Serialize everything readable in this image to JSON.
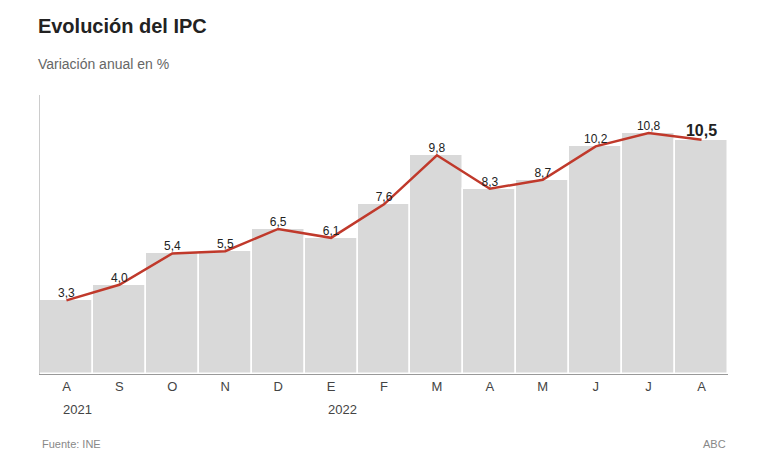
{
  "chart_data": {
    "type": "bar",
    "title": "Evolución del IPC",
    "subtitle": "Variación anual en %",
    "categories": [
      "A",
      "S",
      "O",
      "N",
      "D",
      "E",
      "F",
      "M",
      "A",
      "M",
      "J",
      "J",
      "A"
    ],
    "series": [
      {
        "type": "bar",
        "color": "#d9d9d9",
        "values": [
          3.3,
          4.0,
          5.4,
          5.5,
          6.5,
          6.1,
          7.6,
          9.8,
          8.3,
          8.7,
          10.2,
          10.8,
          10.5
        ]
      },
      {
        "type": "line",
        "color": "#c0392b",
        "values": [
          3.3,
          4.0,
          5.4,
          5.5,
          6.5,
          6.1,
          7.6,
          9.8,
          8.3,
          8.7,
          10.2,
          10.8,
          10.5
        ],
        "data_labels": true,
        "value_labels": [
          "3,3",
          "4,0",
          "5,4",
          "5,5",
          "6,5",
          "6,1",
          "7,6",
          "9,8",
          "8,3",
          "8,7",
          "10,2",
          "10,8",
          "10,5"
        ]
      }
    ],
    "annotations": [
      {
        "text": "2021",
        "x": 0
      },
      {
        "text": "2022",
        "x": 5
      }
    ],
    "source": "Fuente: INE",
    "brand": "ABC",
    "ylim": [
      0,
      12.5
    ],
    "grid": false,
    "tick_labels": "x"
  }
}
